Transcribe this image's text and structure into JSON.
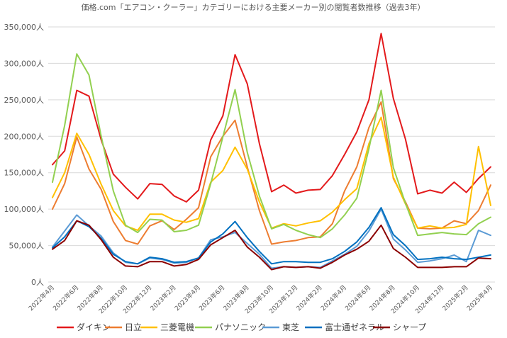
{
  "chart_data": {
    "type": "line",
    "title": "価格.com「エアコン・クーラー」カテゴリーにおける主要メーカー別の閲覧者数推移（過去3年）",
    "xlabel": "",
    "ylabel": "",
    "ylim": [
      0,
      350000
    ],
    "yticks": [
      0,
      50000,
      100000,
      150000,
      200000,
      250000,
      300000,
      350000
    ],
    "ytick_labels": [
      "0人",
      "50,000人",
      "100,000人",
      "150,000人",
      "200,000人",
      "250,000人",
      "300,000人",
      "350,000人"
    ],
    "x": [
      "2022年4月",
      "2022年5月",
      "2022年6月",
      "2022年7月",
      "2022年8月",
      "2022年9月",
      "2022年10月",
      "2022年11月",
      "2022年12月",
      "2023年1月",
      "2023年2月",
      "2023年3月",
      "2023年4月",
      "2023年5月",
      "2023年6月",
      "2023年7月",
      "2023年8月",
      "2023年9月",
      "2023年10月",
      "2023年11月",
      "2023年12月",
      "2024年1月",
      "2024年2月",
      "2024年3月",
      "2024年4月",
      "2024年5月",
      "2024年6月",
      "2024年7月",
      "2024年8月",
      "2024年9月",
      "2024年10月",
      "2024年11月",
      "2024年12月",
      "2025年1月",
      "2025年2月",
      "2025年3月",
      "2025年4月"
    ],
    "xtick_labels": [
      "2022年4月",
      "2022年6月",
      "2022年8月",
      "2022年10月",
      "2022年12月",
      "2023年2月",
      "2023年4月",
      "2023年6月",
      "2023年8月",
      "2023年10月",
      "2023年12月",
      "2024年2月",
      "2024年4月",
      "2024年6月",
      "2024年8月",
      "2024年10月",
      "2024年12月",
      "2025年2月",
      "2025年4月"
    ],
    "grid": true,
    "legend_position": "bottom",
    "series": [
      {
        "name": "ダイキン",
        "color": "#e31a1c",
        "values": [
          161000,
          180000,
          263000,
          255000,
          195000,
          148000,
          130000,
          114000,
          135000,
          134000,
          118000,
          110000,
          126000,
          195000,
          228000,
          312000,
          272000,
          190000,
          124000,
          133000,
          122000,
          126000,
          127000,
          146000,
          175000,
          206000,
          250000,
          341000,
          252000,
          196000,
          121000,
          126000,
          122000,
          137000,
          123000,
          142000,
          158000
        ]
      },
      {
        "name": "日立",
        "color": "#ed7d31",
        "values": [
          100000,
          135000,
          199000,
          155000,
          127000,
          83000,
          57000,
          52000,
          77000,
          84000,
          72000,
          86000,
          102000,
          172000,
          200000,
          222000,
          158000,
          98000,
          52000,
          55000,
          57000,
          61000,
          62000,
          80000,
          125000,
          158000,
          212000,
          247000,
          142000,
          110000,
          74000,
          73000,
          74000,
          84000,
          80000,
          98000,
          133000
        ]
      },
      {
        "name": "三菱電機",
        "color": "#ffc000",
        "values": [
          116000,
          150000,
          204000,
          175000,
          134000,
          98000,
          77000,
          71000,
          93000,
          93000,
          85000,
          82000,
          87000,
          137000,
          153000,
          185000,
          155000,
          110000,
          74000,
          80000,
          77000,
          81000,
          84000,
          96000,
          113000,
          128000,
          190000,
          226000,
          144000,
          107000,
          74000,
          77000,
          74000,
          75000,
          79000,
          186000,
          105000
        ]
      },
      {
        "name": "パナソニック",
        "color": "#92d050",
        "values": [
          137000,
          215000,
          313000,
          284000,
          200000,
          125000,
          78000,
          68000,
          86000,
          85000,
          69000,
          71000,
          78000,
          135000,
          199000,
          264000,
          178000,
          118000,
          73000,
          79000,
          71000,
          65000,
          61000,
          73000,
          92000,
          115000,
          183000,
          263000,
          157000,
          108000,
          64000,
          66000,
          68000,
          66000,
          65000,
          80000,
          89000
        ]
      },
      {
        "name": "東芝",
        "color": "#5b9bd5",
        "values": [
          48000,
          70000,
          92000,
          77000,
          63000,
          40000,
          27000,
          25000,
          33000,
          31000,
          26000,
          27000,
          33000,
          58000,
          62000,
          68000,
          53000,
          38000,
          19000,
          21000,
          20000,
          21000,
          20000,
          29000,
          38000,
          49000,
          70000,
          100000,
          59000,
          44000,
          27000,
          29000,
          32000,
          37000,
          28000,
          71000,
          64000
        ]
      },
      {
        "name": "富士通ゼネラル",
        "color": "#0070c0",
        "values": [
          47000,
          62000,
          84000,
          76000,
          60000,
          38000,
          28000,
          25000,
          34000,
          32000,
          27000,
          28000,
          33000,
          55000,
          66000,
          83000,
          61000,
          42000,
          25000,
          28000,
          28000,
          27000,
          27000,
          32000,
          42000,
          55000,
          75000,
          102000,
          65000,
          50000,
          31000,
          32000,
          34000,
          32000,
          31000,
          34000,
          37000
        ]
      },
      {
        "name": "シャープ",
        "color": "#8b0000",
        "values": [
          45000,
          57000,
          84000,
          78000,
          58000,
          34000,
          22000,
          21000,
          28000,
          28000,
          22000,
          24000,
          31000,
          51000,
          61000,
          71000,
          48000,
          34000,
          17000,
          21000,
          20000,
          21000,
          19000,
          27000,
          37000,
          45000,
          56000,
          78000,
          46000,
          34000,
          20000,
          20000,
          20000,
          21000,
          21000,
          33000,
          32000
        ]
      }
    ]
  }
}
